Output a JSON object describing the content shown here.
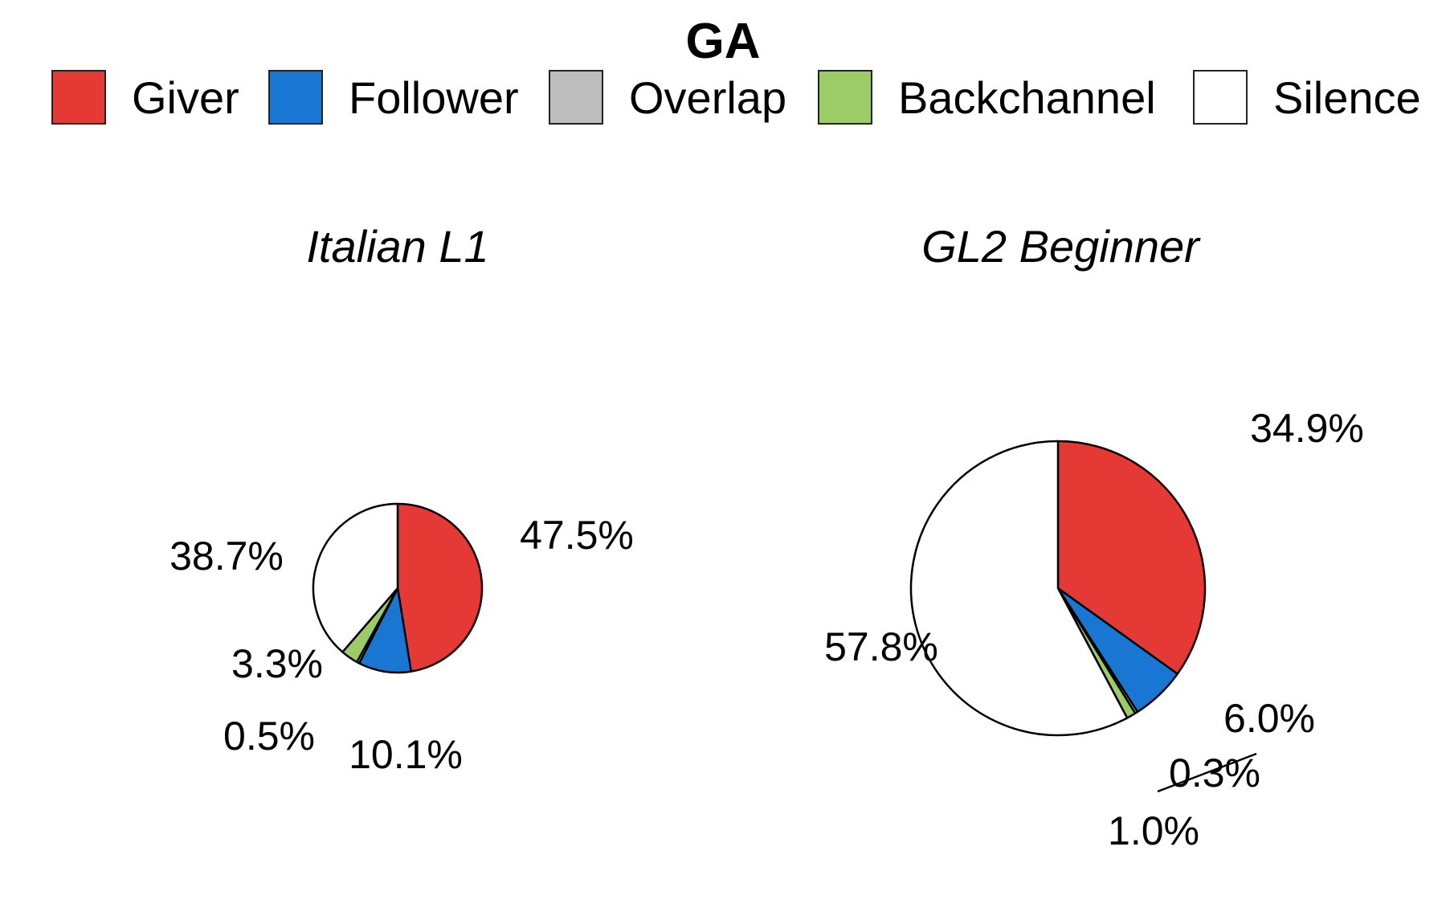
{
  "chart_data": {
    "type": "pie",
    "title": "GA",
    "legend": {
      "placement": "top",
      "entries": [
        {
          "label": "Giver",
          "color": "#e53935"
        },
        {
          "label": "Follower",
          "color": "#1976d2"
        },
        {
          "label": "Overlap",
          "color": "#bdbdbd"
        },
        {
          "label": "Backchannel",
          "color": "#9ccc65"
        },
        {
          "label": "Silence",
          "color": "#ffffff"
        }
      ]
    },
    "categories": [
      "Giver",
      "Follower",
      "Overlap",
      "Backchannel",
      "Silence"
    ],
    "panels": [
      {
        "title": "Italian L1",
        "values": [
          47.5,
          10.1,
          0.5,
          3.3,
          38.7
        ],
        "labels": [
          "47.5%",
          "10.1%",
          "0.5%",
          "3.3%",
          "38.7%"
        ]
      },
      {
        "title": "GL2 Beginner",
        "values": [
          34.9,
          6.0,
          0.3,
          1.0,
          57.8
        ],
        "labels": [
          "34.9%",
          "6.0%",
          "0.3%",
          "1.0%",
          "57.8%"
        ]
      }
    ]
  }
}
